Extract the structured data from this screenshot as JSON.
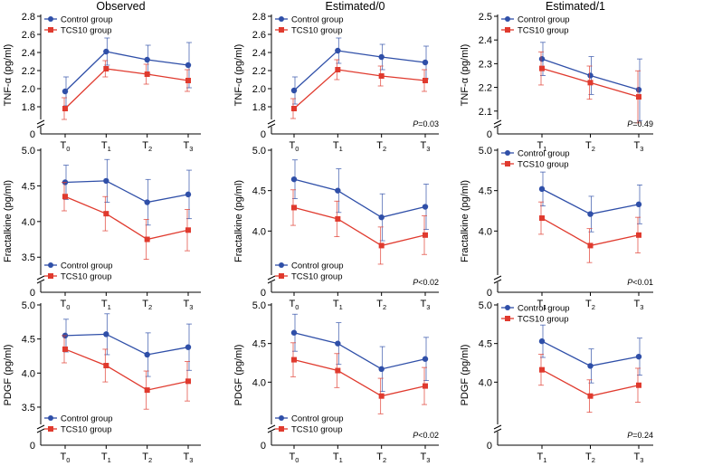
{
  "colors": {
    "control": "#2f4fa8",
    "tcs10": "#e03a2e"
  },
  "legend": {
    "control": "Control group",
    "tcs10": "TCS10 group"
  },
  "chart_data": [
    {
      "id": "tnf-observed",
      "type": "line",
      "row": 0,
      "col": 0,
      "title": "Observed",
      "ylabel": "TNF-α (pg/ml)",
      "x": [
        "T0",
        "T1",
        "T2",
        "T3"
      ],
      "ylim": [
        1.7,
        2.8
      ],
      "yticks": [
        "1.8",
        "2.0",
        "2.2",
        "2.4",
        "2.6",
        "2.8"
      ],
      "axis_break": true,
      "legend_position": "top-left",
      "p_value": "",
      "series": [
        {
          "name": "Control group",
          "key": "control",
          "values": [
            1.97,
            2.41,
            2.32,
            2.26
          ],
          "err": [
            0.16,
            0.15,
            0.16,
            0.25
          ]
        },
        {
          "name": "TCS10 group",
          "key": "tcs10",
          "values": [
            1.78,
            2.22,
            2.16,
            2.09
          ],
          "err": [
            0.12,
            0.09,
            0.11,
            0.12
          ]
        }
      ]
    },
    {
      "id": "tnf-est0",
      "type": "line",
      "row": 0,
      "col": 1,
      "title": "Estimated/0",
      "ylabel": "TNF-α (pg/ml)",
      "x": [
        "T0",
        "T1",
        "T2",
        "T3"
      ],
      "ylim": [
        1.7,
        2.8
      ],
      "yticks": [
        "1.8",
        "2.0",
        "2.2",
        "2.4",
        "2.6",
        "2.8"
      ],
      "axis_break": true,
      "legend_position": "top-left",
      "p_value": "P=0.03",
      "series": [
        {
          "name": "Control group",
          "key": "control",
          "values": [
            1.98,
            2.42,
            2.35,
            2.29
          ],
          "err": [
            0.15,
            0.14,
            0.14,
            0.18
          ]
        },
        {
          "name": "TCS10 group",
          "key": "tcs10",
          "values": [
            1.78,
            2.21,
            2.14,
            2.09
          ],
          "err": [
            0.11,
            0.11,
            0.11,
            0.12
          ]
        }
      ]
    },
    {
      "id": "tnf-est1",
      "type": "line",
      "row": 0,
      "col": 2,
      "title": "Estimated/1",
      "ylabel": "TNF-α (pg/ml)",
      "x": [
        "T1",
        "T2",
        "T3"
      ],
      "ylim": [
        2.08,
        2.5
      ],
      "yticks": [
        "2.1",
        "2.2",
        "2.3",
        "2.4",
        "2.5"
      ],
      "axis_break": true,
      "legend_position": "top-left",
      "p_value": "P=0.49",
      "series": [
        {
          "name": "Control group",
          "key": "control",
          "values": [
            2.32,
            2.25,
            2.19
          ],
          "err": [
            0.07,
            0.08,
            0.13
          ]
        },
        {
          "name": "TCS10 group",
          "key": "tcs10",
          "values": [
            2.28,
            2.22,
            2.16
          ],
          "err": [
            0.07,
            0.07,
            0.11
          ]
        }
      ]
    },
    {
      "id": "fkn-observed",
      "type": "line",
      "row": 1,
      "col": 0,
      "title": "",
      "ylabel": "Fractalkine (pg/ml)",
      "x": [
        "T0",
        "T1",
        "T2",
        "T3"
      ],
      "ylim": [
        3.3,
        5.0
      ],
      "yticks": [
        "3.5",
        "4.0",
        "4.5",
        "5.0"
      ],
      "axis_break": true,
      "legend_position": "bottom-left",
      "p_value": "",
      "series": [
        {
          "name": "Control group",
          "key": "control",
          "values": [
            4.55,
            4.57,
            4.27,
            4.38
          ],
          "err": [
            0.24,
            0.3,
            0.32,
            0.34
          ]
        },
        {
          "name": "TCS10 group",
          "key": "tcs10",
          "values": [
            4.35,
            4.11,
            3.75,
            3.88
          ],
          "err": [
            0.2,
            0.24,
            0.28,
            0.29
          ]
        }
      ]
    },
    {
      "id": "fkn-est0",
      "type": "line",
      "row": 1,
      "col": 1,
      "title": "",
      "ylabel": "Fractalkine (pg/ml)",
      "x": [
        "T0",
        "T1",
        "T2",
        "T3"
      ],
      "ylim": [
        3.5,
        5.0
      ],
      "yticks": [
        "4.0",
        "4.5",
        "5.0"
      ],
      "axis_break": true,
      "legend_position": "bottom-left",
      "p_value": "P<0.02",
      "series": [
        {
          "name": "Control group",
          "key": "control",
          "values": [
            4.64,
            4.5,
            4.17,
            4.3
          ],
          "err": [
            0.24,
            0.27,
            0.29,
            0.28
          ]
        },
        {
          "name": "TCS10 group",
          "key": "tcs10",
          "values": [
            4.29,
            4.15,
            3.82,
            3.95
          ],
          "err": [
            0.22,
            0.22,
            0.23,
            0.24
          ]
        }
      ]
    },
    {
      "id": "fkn-est1",
      "type": "line",
      "row": 1,
      "col": 2,
      "title": "",
      "ylabel": "Fractalkine (pg/ml)",
      "x": [
        "T1",
        "T2",
        "T3"
      ],
      "ylim": [
        3.5,
        5.0
      ],
      "yticks": [
        "4.0",
        "4.5",
        "5.0"
      ],
      "axis_break": true,
      "legend_position": "top-left",
      "p_value": "P<0.01",
      "series": [
        {
          "name": "Control group",
          "key": "control",
          "values": [
            4.52,
            4.21,
            4.33
          ],
          "err": [
            0.21,
            0.22,
            0.24
          ]
        },
        {
          "name": "TCS10 group",
          "key": "tcs10",
          "values": [
            4.16,
            3.82,
            3.95
          ],
          "err": [
            0.2,
            0.21,
            0.22
          ]
        }
      ]
    },
    {
      "id": "pdgf-observed",
      "type": "line",
      "row": 2,
      "col": 0,
      "title": "",
      "ylabel": "PDGF (pg/ml)",
      "x": [
        "T0",
        "T1",
        "T2",
        "T3"
      ],
      "ylim": [
        3.3,
        5.0
      ],
      "yticks": [
        "3.5",
        "4.0",
        "4.5",
        "5.0"
      ],
      "axis_break": true,
      "legend_position": "bottom-left",
      "p_value": "",
      "series": [
        {
          "name": "Control group",
          "key": "control",
          "values": [
            4.55,
            4.57,
            4.27,
            4.38
          ],
          "err": [
            0.24,
            0.3,
            0.32,
            0.34
          ]
        },
        {
          "name": "TCS10 group",
          "key": "tcs10",
          "values": [
            4.35,
            4.11,
            3.75,
            3.88
          ],
          "err": [
            0.2,
            0.24,
            0.28,
            0.29
          ]
        }
      ]
    },
    {
      "id": "pdgf-est0",
      "type": "line",
      "row": 2,
      "col": 1,
      "title": "",
      "ylabel": "PDGF (pg/ml)",
      "x": [
        "T0",
        "T1",
        "T2",
        "T3"
      ],
      "ylim": [
        3.5,
        5.0
      ],
      "yticks": [
        "4.0",
        "4.5",
        "5.0"
      ],
      "axis_break": true,
      "legend_position": "bottom-left",
      "p_value": "P<0.02",
      "series": [
        {
          "name": "Control group",
          "key": "control",
          "values": [
            4.64,
            4.5,
            4.17,
            4.3
          ],
          "err": [
            0.24,
            0.27,
            0.29,
            0.28
          ]
        },
        {
          "name": "TCS10 group",
          "key": "tcs10",
          "values": [
            4.29,
            4.15,
            3.82,
            3.95
          ],
          "err": [
            0.22,
            0.22,
            0.23,
            0.24
          ]
        }
      ]
    },
    {
      "id": "pdgf-est1",
      "type": "line",
      "row": 2,
      "col": 2,
      "title": "",
      "ylabel": "PDGF (pg/ml)",
      "x": [
        "T1",
        "T2",
        "T3"
      ],
      "ylim": [
        3.5,
        5.0
      ],
      "yticks": [
        "4.0",
        "4.5",
        "5.0"
      ],
      "axis_break": true,
      "legend_position": "top-left",
      "p_value": "P=0.24",
      "series": [
        {
          "name": "Control group",
          "key": "control",
          "values": [
            4.53,
            4.21,
            4.33
          ],
          "err": [
            0.21,
            0.22,
            0.24
          ]
        },
        {
          "name": "TCS10 group",
          "key": "tcs10",
          "values": [
            4.16,
            3.82,
            3.96
          ],
          "err": [
            0.2,
            0.21,
            0.22
          ]
        }
      ]
    }
  ]
}
